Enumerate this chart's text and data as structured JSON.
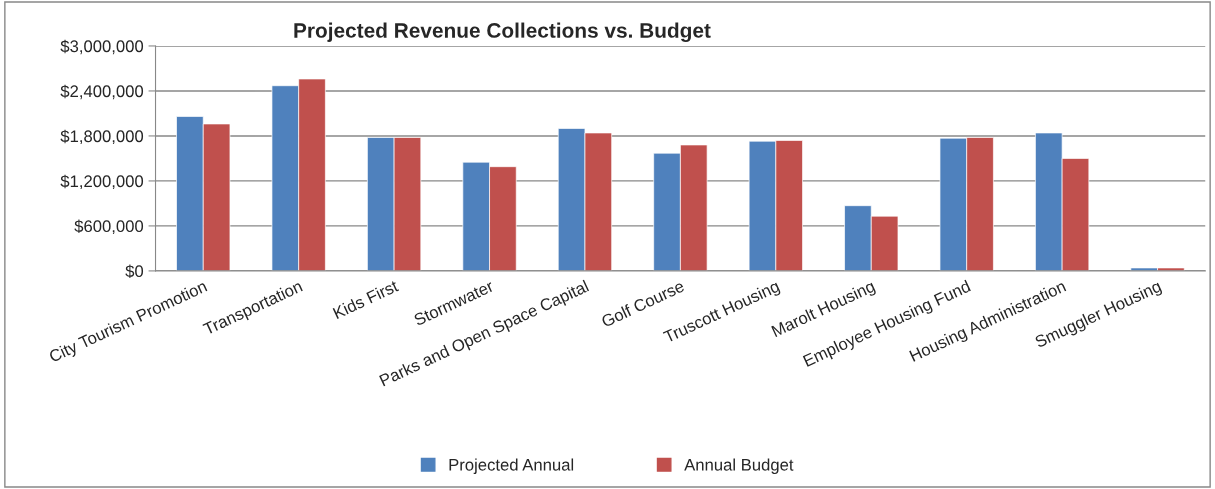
{
  "chart_data": {
    "type": "bar",
    "title": "Projected Revenue Collections vs. Budget",
    "categories": [
      "City Tourism Promotion",
      "Transportation",
      "Kids First",
      "Stormwater",
      "Parks and Open Space Capital",
      "Golf Course",
      "Truscott Housing",
      "Marolt Housing",
      "Employee Housing Fund",
      "Housing Administration",
      "Smuggler Housing"
    ],
    "series": [
      {
        "name": "Projected Annual",
        "color": "#4f81bd",
        "values": [
          2060000,
          2470000,
          1780000,
          1450000,
          1900000,
          1570000,
          1730000,
          870000,
          1770000,
          1840000,
          40000
        ]
      },
      {
        "name": "Annual Budget",
        "color": "#c0504d",
        "values": [
          1960000,
          2560000,
          1780000,
          1390000,
          1840000,
          1680000,
          1740000,
          730000,
          1780000,
          1500000,
          40000
        ]
      }
    ],
    "ylim": [
      0,
      3000000
    ],
    "yticks": [
      {
        "value": 0,
        "label": "$0"
      },
      {
        "value": 600000,
        "label": "$600,000"
      },
      {
        "value": 1200000,
        "label": "$1,200,000"
      },
      {
        "value": 1800000,
        "label": "$1,800,000"
      },
      {
        "value": 2400000,
        "label": "$2,400,000"
      },
      {
        "value": 3000000,
        "label": "$3,000,000"
      }
    ],
    "grid": "y",
    "legend": "bottom"
  }
}
